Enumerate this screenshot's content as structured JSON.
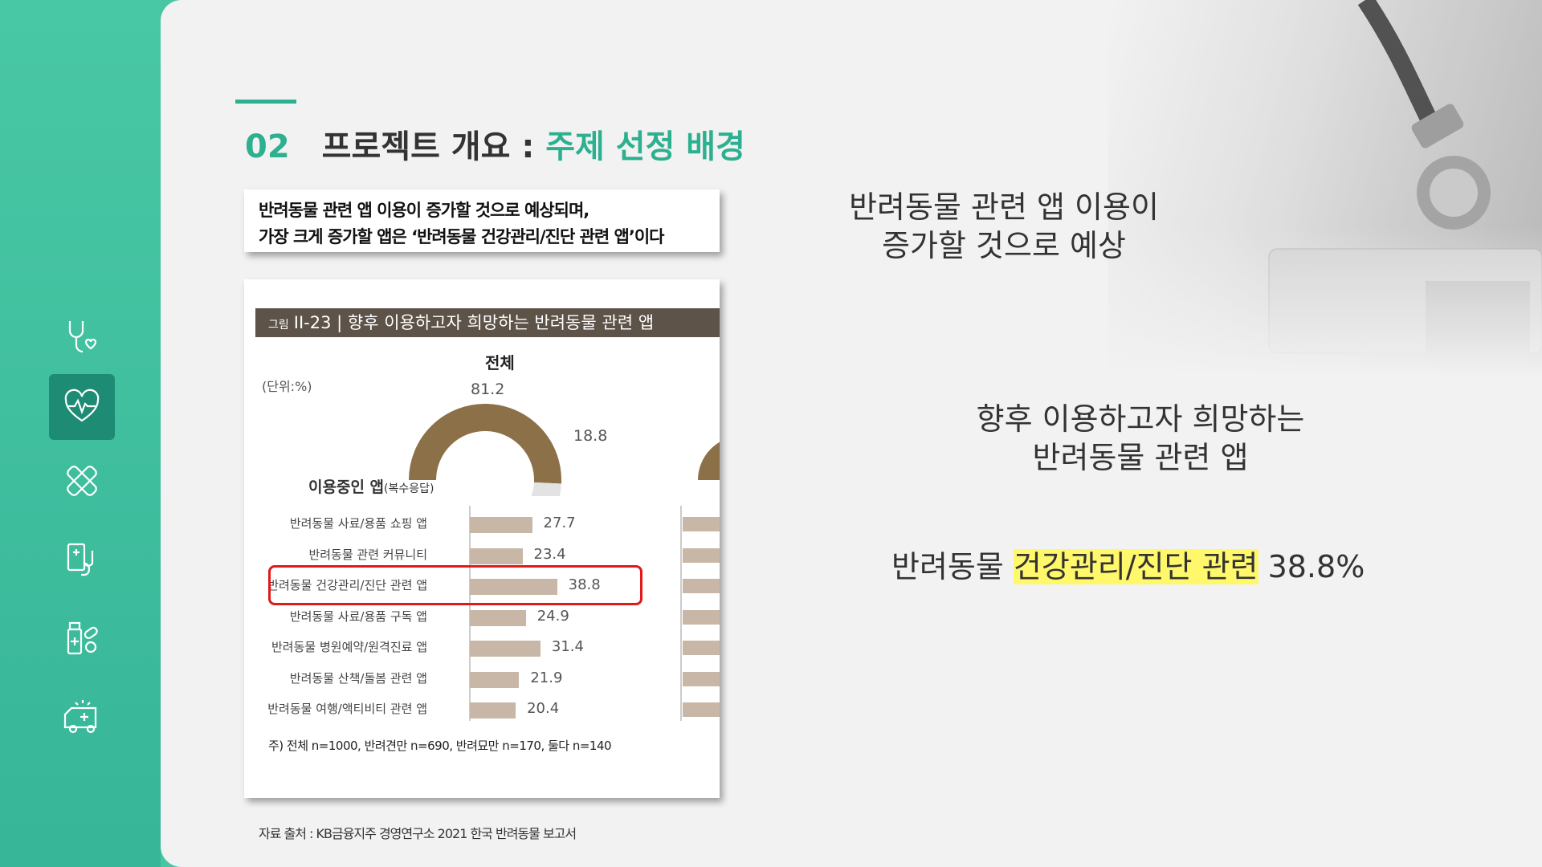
{
  "sidebar": {
    "icons": [
      {
        "name": "stethoscope-heart-icon",
        "active": false
      },
      {
        "name": "heartbeat-icon",
        "active": true
      },
      {
        "name": "bandage-icon",
        "active": false
      },
      {
        "name": "clipboard-stethoscope-icon",
        "active": false
      },
      {
        "name": "medicine-pills-icon",
        "active": false
      },
      {
        "name": "ambulance-icon",
        "active": false
      }
    ],
    "accent": "#48c6a4",
    "active_bg": "#1e8c74"
  },
  "header": {
    "number": "02",
    "title": "프로젝트 개요 : ",
    "title_highlight": "주제 선정 배경"
  },
  "headline": {
    "line1": "반려동물 관련 앱 이용이 증가할 것으로 예상되며,",
    "line2": "가장 크게 증가할 앱은 ‘반려동물 건강관리/진단 관련 앱’이다"
  },
  "figure": {
    "caption_prefix": "그림",
    "caption": "II-23 | 향후 이용하고자 희망하는 반려동물 관련 앱",
    "subtitle": "전체",
    "unit": "(단위:%)",
    "section_title": "이용중인 앱",
    "section_note": "(복수응답)",
    "footnote": "주) 전체 n=1000, 반려견만 n=690, 반려묘만 n=170, 둘다 n=140"
  },
  "chart_data": [
    {
      "type": "pie",
      "title": "전체",
      "values": [
        81.2,
        18.8
      ]
    },
    {
      "type": "bar",
      "title": "이용중인 앱(복수응답)",
      "categories": [
        "반려동물 사료/용품 쇼핑 앱",
        "반려동물 관련 커뮤니티",
        "반려동물 건강관리/진단 관련 앱",
        "반려동물 사료/용품 구독 앱",
        "반려동물 병원예약/원격진료 앱",
        "반려동물 산책/돌봄 관련 앱",
        "반려동물 여행/액티비티 관련 앱"
      ],
      "values": [
        27.7,
        23.4,
        38.8,
        24.9,
        31.4,
        21.9,
        20.4
      ],
      "highlight_index": 2,
      "highlight_color": "#e01a1a",
      "bar_color": "#c8b7a6"
    }
  ],
  "source": "자료 출처 : KB금융지주 경영연구소 2021 한국 반려동물 보고서",
  "summary": {
    "block1_line1": "반려동물 관련 앱 이용이",
    "block1_line2": "증가할 것으로 예상",
    "block2_line1": "향후 이용하고자 희망하는",
    "block2_line2": "반려동물 관련 앱",
    "block3_pre": "반려동물 ",
    "block3_highlight": "건강관리/진단 관련",
    "block3_post": " 38.8%"
  }
}
